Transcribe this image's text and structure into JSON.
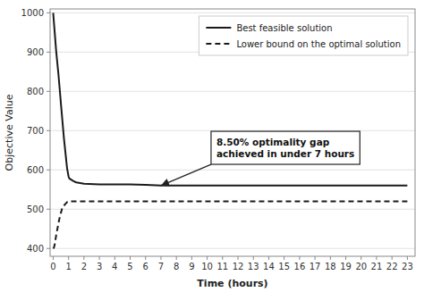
{
  "chart_data": {
    "type": "line",
    "xlabel": "Time (hours)",
    "ylabel": "Objective Value",
    "series": [
      {
        "name": "Best feasible solution",
        "color": "#1a1a1a",
        "line_style": "solid",
        "x": [
          0,
          0.02,
          0.05,
          0.1,
          0.2,
          0.35,
          0.5,
          0.7,
          0.9,
          1.0,
          1.05,
          1.3,
          1.5,
          2.0,
          3.0,
          5.0,
          6.0,
          7.0,
          7.5,
          23.0
        ],
        "values": [
          1000,
          990,
          975,
          950,
          900,
          840,
          770,
          680,
          605,
          583,
          578,
          572,
          568,
          565,
          563,
          563,
          562,
          560,
          560,
          560
        ]
      },
      {
        "name": "Lower bound on the optimal solution",
        "color": "#1a1a1a",
        "line_style": "dashed",
        "x": [
          0,
          0.05,
          0.1,
          0.2,
          0.4,
          0.6,
          0.9,
          1.0,
          23.0
        ],
        "values": [
          400,
          402,
          410,
          435,
          475,
          505,
          518,
          520,
          520
        ]
      }
    ],
    "annotations": [
      {
        "text": "8.50% optimality gap\nachieved in under 7 hours",
        "x": 7.0,
        "y": 560
      }
    ],
    "xlim": [
      -0.2,
      23.5
    ],
    "ylim": [
      380,
      1010
    ],
    "xticks": [
      0,
      1,
      2,
      3,
      4,
      5,
      6,
      7,
      8,
      9,
      10,
      11,
      12,
      13,
      14,
      15,
      16,
      17,
      18,
      19,
      20,
      21,
      22,
      23
    ],
    "yticks": [
      400,
      500,
      600,
      700,
      800,
      900,
      1000
    ],
    "grid": true,
    "legend": "upper right"
  }
}
